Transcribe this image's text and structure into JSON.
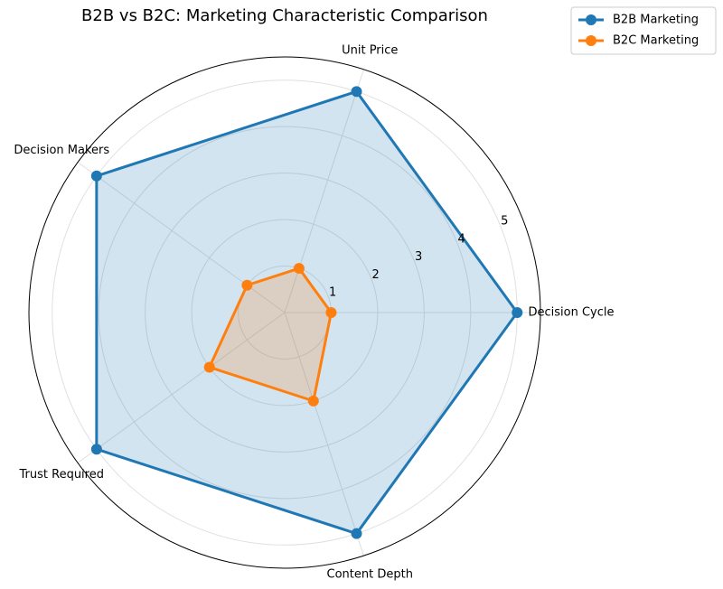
{
  "chart_data": {
    "type": "radar",
    "title": "B2B vs B2C: Marketing Characteristic Comparison",
    "categories": [
      "Decision Cycle",
      "Unit Price",
      "Decision Makers",
      "Trust Required",
      "Content Depth"
    ],
    "series": [
      {
        "name": "B2B Marketing",
        "color": "#1f77b4",
        "values": [
          5,
          5,
          5,
          5,
          5
        ]
      },
      {
        "name": "B2C Marketing",
        "color": "#ff7f0e",
        "values": [
          1,
          1,
          1,
          2,
          2
        ]
      }
    ],
    "rlim": [
      0,
      5.5
    ],
    "rticks": [
      1,
      2,
      3,
      4,
      5
    ],
    "grid": true,
    "legend": "upper right"
  }
}
